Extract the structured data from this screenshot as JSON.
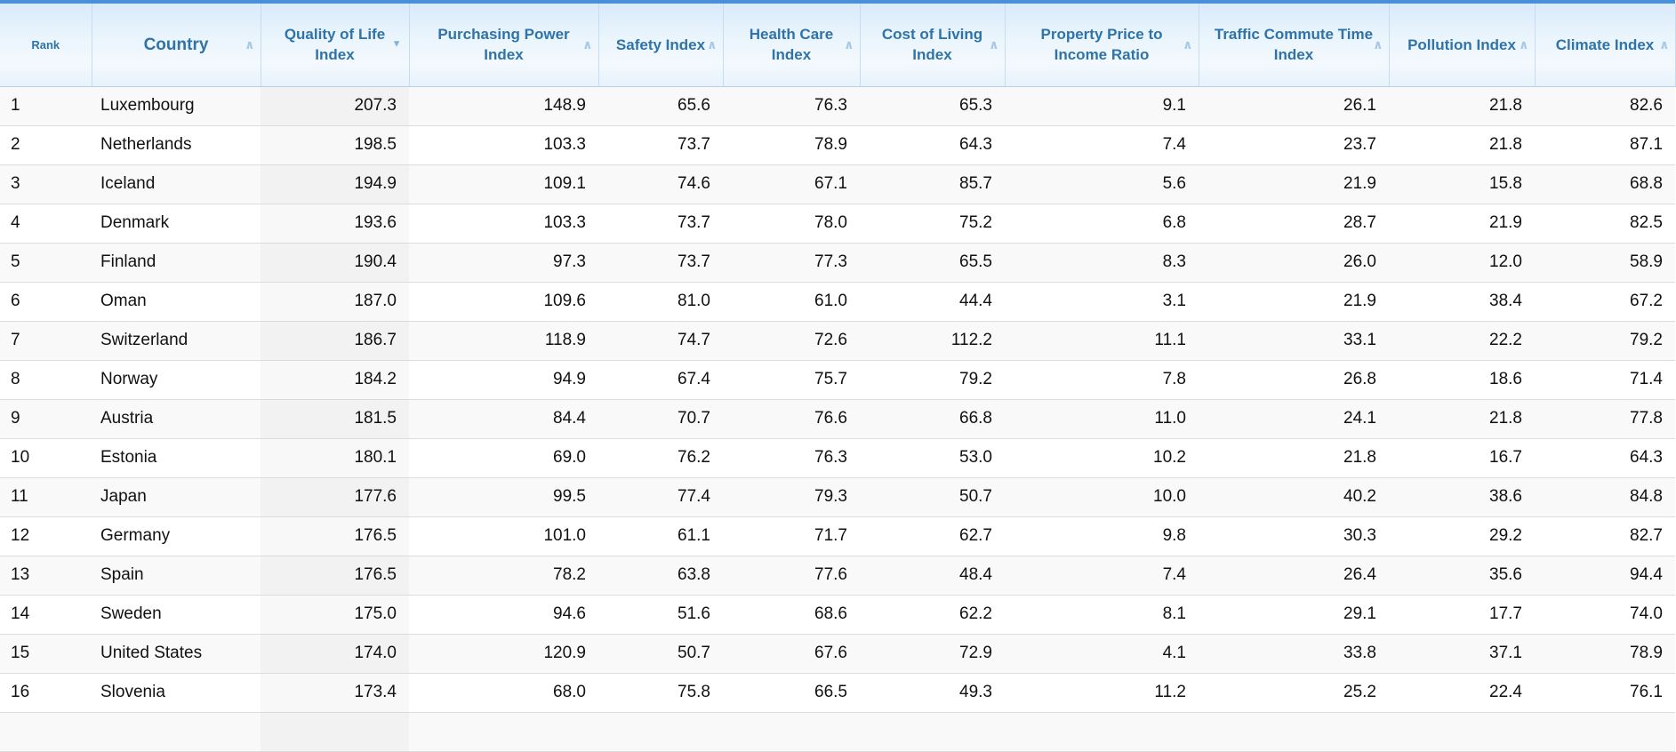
{
  "icons": {
    "sort_ascending": "∧",
    "sort_descending": "▼"
  },
  "colors": {
    "accent_bar": "#4a90d9",
    "header_text": "#2f73a8",
    "inactive_sort_icon": "#a6c9e8",
    "active_sort_icon": "#7fb2df",
    "stripe_row": "#f9f9f9"
  },
  "table": {
    "columns": [
      {
        "label": "Rank",
        "sortable": false,
        "sort_state": "none"
      },
      {
        "label": "Country",
        "sortable": true,
        "sort_state": "unsorted"
      },
      {
        "label": "Quality of Life Index",
        "sortable": true,
        "sort_state": "descending"
      },
      {
        "label": "Purchasing Power Index",
        "sortable": true,
        "sort_state": "unsorted"
      },
      {
        "label": "Safety Index",
        "sortable": true,
        "sort_state": "unsorted"
      },
      {
        "label": "Health Care Index",
        "sortable": true,
        "sort_state": "unsorted"
      },
      {
        "label": "Cost of Living Index",
        "sortable": true,
        "sort_state": "unsorted"
      },
      {
        "label": "Property Price to Income Ratio",
        "sortable": true,
        "sort_state": "unsorted"
      },
      {
        "label": "Traffic Commute Time Index",
        "sortable": true,
        "sort_state": "unsorted"
      },
      {
        "label": "Pollution Index",
        "sortable": true,
        "sort_state": "unsorted"
      },
      {
        "label": "Climate Index",
        "sortable": true,
        "sort_state": "unsorted"
      }
    ],
    "rows": [
      {
        "rank": "1",
        "country": "Luxembourg",
        "values": [
          "207.3",
          "148.9",
          "65.6",
          "76.3",
          "65.3",
          "9.1",
          "26.1",
          "21.8",
          "82.6"
        ]
      },
      {
        "rank": "2",
        "country": "Netherlands",
        "values": [
          "198.5",
          "103.3",
          "73.7",
          "78.9",
          "64.3",
          "7.4",
          "23.7",
          "21.8",
          "87.1"
        ]
      },
      {
        "rank": "3",
        "country": "Iceland",
        "values": [
          "194.9",
          "109.1",
          "74.6",
          "67.1",
          "85.7",
          "5.6",
          "21.9",
          "15.8",
          "68.8"
        ]
      },
      {
        "rank": "4",
        "country": "Denmark",
        "values": [
          "193.6",
          "103.3",
          "73.7",
          "78.0",
          "75.2",
          "6.8",
          "28.7",
          "21.9",
          "82.5"
        ]
      },
      {
        "rank": "5",
        "country": "Finland",
        "values": [
          "190.4",
          "97.3",
          "73.7",
          "77.3",
          "65.5",
          "8.3",
          "26.0",
          "12.0",
          "58.9"
        ]
      },
      {
        "rank": "6",
        "country": "Oman",
        "values": [
          "187.0",
          "109.6",
          "81.0",
          "61.0",
          "44.4",
          "3.1",
          "21.9",
          "38.4",
          "67.2"
        ]
      },
      {
        "rank": "7",
        "country": "Switzerland",
        "values": [
          "186.7",
          "118.9",
          "74.7",
          "72.6",
          "112.2",
          "11.1",
          "33.1",
          "22.2",
          "79.2"
        ]
      },
      {
        "rank": "8",
        "country": "Norway",
        "values": [
          "184.2",
          "94.9",
          "67.4",
          "75.7",
          "79.2",
          "7.8",
          "26.8",
          "18.6",
          "71.4"
        ]
      },
      {
        "rank": "9",
        "country": "Austria",
        "values": [
          "181.5",
          "84.4",
          "70.7",
          "76.6",
          "66.8",
          "11.0",
          "24.1",
          "21.8",
          "77.8"
        ]
      },
      {
        "rank": "10",
        "country": "Estonia",
        "values": [
          "180.1",
          "69.0",
          "76.2",
          "76.3",
          "53.0",
          "10.2",
          "21.8",
          "16.7",
          "64.3"
        ]
      },
      {
        "rank": "11",
        "country": "Japan",
        "values": [
          "177.6",
          "99.5",
          "77.4",
          "79.3",
          "50.7",
          "10.0",
          "40.2",
          "38.6",
          "84.8"
        ]
      },
      {
        "rank": "12",
        "country": "Germany",
        "values": [
          "176.5",
          "101.0",
          "61.1",
          "71.7",
          "62.7",
          "9.8",
          "30.3",
          "29.2",
          "82.7"
        ]
      },
      {
        "rank": "13",
        "country": "Spain",
        "values": [
          "176.5",
          "78.2",
          "63.8",
          "77.6",
          "48.4",
          "7.4",
          "26.4",
          "35.6",
          "94.4"
        ]
      },
      {
        "rank": "14",
        "country": "Sweden",
        "values": [
          "175.0",
          "94.6",
          "51.6",
          "68.6",
          "62.2",
          "8.1",
          "29.1",
          "17.7",
          "74.0"
        ]
      },
      {
        "rank": "15",
        "country": "United States",
        "values": [
          "174.0",
          "120.9",
          "50.7",
          "67.6",
          "72.9",
          "4.1",
          "33.8",
          "37.1",
          "78.9"
        ]
      },
      {
        "rank": "16",
        "country": "Slovenia",
        "values": [
          "173.4",
          "68.0",
          "75.8",
          "66.5",
          "49.3",
          "11.2",
          "25.2",
          "22.4",
          "76.1"
        ]
      }
    ]
  }
}
